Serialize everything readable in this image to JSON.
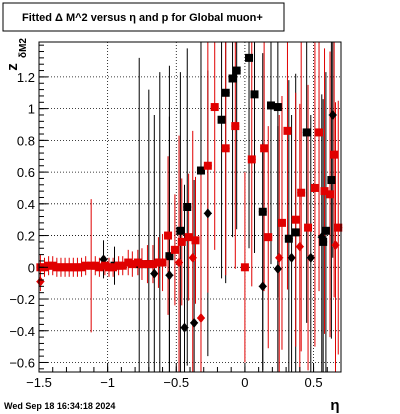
{
  "title": "Fitted Δ M^2 versus η and p for Global muon+",
  "footer": "Wed Sep 18 16:34:18 2024",
  "chart_data": {
    "type": "scatter",
    "xlabel": "η",
    "ylabel": "z",
    "ylabel_subscript": "δM2",
    "xlim": [
      -1.5,
      0.7
    ],
    "ylim": [
      -0.66,
      1.42
    ],
    "xticks": [
      -1.5,
      -1,
      -0.5,
      0,
      0.5
    ],
    "xtick_labels": [
      "−1.5",
      "−1",
      "−0.5",
      "0",
      "0.5"
    ],
    "yticks": [
      -0.6,
      -0.4,
      -0.2,
      0,
      0.2,
      0.4,
      0.6,
      0.8,
      1,
      1.2
    ],
    "ytick_labels": [
      "−0.6",
      "−0.4",
      "−0.2",
      "0",
      "0.2",
      "0.4",
      "0.6",
      "0.8",
      "1",
      "1.2"
    ],
    "grid": true,
    "series": [
      {
        "color": "#000000",
        "marker": "square",
        "points": [
          {
            "x": -0.95,
            "y": 0.01,
            "err": 0.12
          },
          {
            "x": -0.77,
            "y": 0.02,
            "err": 1.3
          },
          {
            "x": -0.7,
            "y": 0.02,
            "err": 1.1
          },
          {
            "x": -0.62,
            "y": 0.03,
            "err": 1.2
          },
          {
            "x": -0.55,
            "y": 0.07,
            "err": 1.2
          },
          {
            "x": -0.47,
            "y": 0.23,
            "err": 1.0
          },
          {
            "x": -0.42,
            "y": 0.38,
            "err": 1.0
          },
          {
            "x": -0.32,
            "y": 0.61,
            "err": 1.0
          },
          {
            "x": -0.17,
            "y": 0.93,
            "err": 1.0
          },
          {
            "x": -0.14,
            "y": 1.1,
            "err": 1.2
          },
          {
            "x": -0.09,
            "y": 1.19,
            "err": 1.0
          },
          {
            "x": -0.06,
            "y": 1.24,
            "err": 1.0
          },
          {
            "x": 0.03,
            "y": 1.32,
            "err": 1.2
          },
          {
            "x": 0.07,
            "y": 1.09,
            "err": 1.0
          },
          {
            "x": 0.19,
            "y": 1.02,
            "err": 1.0
          },
          {
            "x": 0.24,
            "y": 1.01,
            "err": 1.2
          },
          {
            "x": 0.13,
            "y": 0.35,
            "err": 1.0
          },
          {
            "x": 0.32,
            "y": 0.18,
            "err": 1.0
          },
          {
            "x": 0.37,
            "y": 0.22,
            "err": 1.0
          },
          {
            "x": 0.45,
            "y": 0.85,
            "err": 1.2
          },
          {
            "x": 0.57,
            "y": 0.16,
            "err": 0.9
          },
          {
            "x": 0.59,
            "y": 0.23,
            "err": 1.0
          },
          {
            "x": 0.63,
            "y": 0.55,
            "err": 1.0
          }
        ]
      },
      {
        "color": "#000000",
        "marker": "diamond",
        "points": [
          {
            "x": -1.03,
            "y": 0.05,
            "err": 0.12
          },
          {
            "x": -0.66,
            "y": -0.04,
            "err": 1.0
          },
          {
            "x": -0.55,
            "y": -0.05,
            "err": 1.0
          },
          {
            "x": -0.44,
            "y": -0.38,
            "err": 0.9
          },
          {
            "x": -0.37,
            "y": -0.35,
            "err": 0.9
          },
          {
            "x": -0.27,
            "y": 0.34,
            "err": 0.9
          },
          {
            "x": 0.13,
            "y": -0.12,
            "err": 0.9
          },
          {
            "x": 0.24,
            "y": -0.01,
            "err": 0.9
          },
          {
            "x": 0.34,
            "y": 0.06,
            "err": 0.9
          },
          {
            "x": 0.48,
            "y": 0.06,
            "err": 0.9
          },
          {
            "x": 0.56,
            "y": 0.19,
            "err": 0.9
          },
          {
            "x": 0.64,
            "y": 0.96,
            "err": 0.9
          }
        ]
      },
      {
        "color": "#e00000",
        "marker": "square",
        "points": [
          {
            "x": -1.49,
            "y": 0.0,
            "err": 0.08
          },
          {
            "x": -1.46,
            "y": 0.0,
            "err": 0.06
          },
          {
            "x": -1.43,
            "y": 0.01,
            "err": 0.06
          },
          {
            "x": -1.4,
            "y": 0.01,
            "err": 0.06
          },
          {
            "x": -1.37,
            "y": 0.0,
            "err": 0.06
          },
          {
            "x": -1.34,
            "y": 0.0,
            "err": 0.06
          },
          {
            "x": -1.31,
            "y": 0.0,
            "err": 0.06
          },
          {
            "x": -1.28,
            "y": 0.0,
            "err": 0.06
          },
          {
            "x": -1.25,
            "y": 0.0,
            "err": 0.06
          },
          {
            "x": -1.22,
            "y": 0.0,
            "err": 0.06
          },
          {
            "x": -1.19,
            "y": 0.0,
            "err": 0.06
          },
          {
            "x": -1.16,
            "y": 0.01,
            "err": 0.06
          },
          {
            "x": -1.12,
            "y": 0.01,
            "err": 0.42
          },
          {
            "x": -1.09,
            "y": 0.01,
            "err": 0.06
          },
          {
            "x": -1.06,
            "y": 0.0,
            "err": 0.06
          },
          {
            "x": -1.02,
            "y": 0.01,
            "err": 0.06
          },
          {
            "x": -0.99,
            "y": 0.0,
            "err": 0.06
          },
          {
            "x": -0.96,
            "y": 0.0,
            "err": 0.06
          },
          {
            "x": -0.92,
            "y": 0.01,
            "err": 0.06
          },
          {
            "x": -0.89,
            "y": 0.01,
            "err": 0.06
          },
          {
            "x": -0.85,
            "y": 0.03,
            "err": 0.08
          },
          {
            "x": -0.82,
            "y": 0.02,
            "err": 0.08
          },
          {
            "x": -0.78,
            "y": 0.03,
            "err": 0.08
          },
          {
            "x": -0.75,
            "y": 0.02,
            "err": 0.1
          },
          {
            "x": -0.71,
            "y": 0.02,
            "err": 0.12
          },
          {
            "x": -0.67,
            "y": 0.02,
            "err": 0.12
          },
          {
            "x": -0.63,
            "y": 0.03,
            "err": 0.16
          },
          {
            "x": -0.6,
            "y": 0.03,
            "err": 0.18
          },
          {
            "x": -0.56,
            "y": 0.2,
            "err": 0.5
          },
          {
            "x": -0.51,
            "y": 0.11,
            "err": 0.35
          },
          {
            "x": -0.46,
            "y": 0.16,
            "err": 0.4
          },
          {
            "x": -0.41,
            "y": 0.19,
            "err": 0.4
          },
          {
            "x": -0.36,
            "y": 0.17,
            "err": 0.4
          },
          {
            "x": -0.27,
            "y": 0.64,
            "err": 0.8
          },
          {
            "x": -0.22,
            "y": 1.01,
            "err": 0.9
          },
          {
            "x": -0.14,
            "y": 0.75,
            "err": 0.8
          },
          {
            "x": -0.07,
            "y": 0.89,
            "err": 0.9
          },
          {
            "x": 0.0,
            "y": 0.0,
            "err": 0.6
          },
          {
            "x": 0.05,
            "y": 0.68,
            "err": 0.8
          },
          {
            "x": 0.14,
            "y": 0.75,
            "err": 0.9
          },
          {
            "x": 0.17,
            "y": 0.19,
            "err": 0.7
          },
          {
            "x": 0.27,
            "y": 0.28,
            "err": 0.8
          },
          {
            "x": 0.31,
            "y": 0.86,
            "err": 1.0
          },
          {
            "x": 0.37,
            "y": 0.3,
            "err": 0.8
          },
          {
            "x": 0.41,
            "y": 0.47,
            "err": 1.0
          },
          {
            "x": 0.46,
            "y": 0.25,
            "err": 0.9
          },
          {
            "x": 0.51,
            "y": 0.5,
            "err": 1.0
          },
          {
            "x": 0.54,
            "y": 0.85,
            "err": 1.0
          },
          {
            "x": 0.58,
            "y": 0.48,
            "err": 0.9
          },
          {
            "x": 0.62,
            "y": 0.46,
            "err": 0.9
          },
          {
            "x": 0.65,
            "y": 0.71,
            "err": 0.9
          },
          {
            "x": 0.68,
            "y": 0.25,
            "err": 0.8
          }
        ]
      },
      {
        "color": "#e00000",
        "marker": "diamond",
        "points": [
          {
            "x": -1.49,
            "y": -0.09,
            "err": 0.06
          },
          {
            "x": -0.48,
            "y": 0.03,
            "err": 0.8
          },
          {
            "x": -0.38,
            "y": 0.06,
            "err": 0.8
          },
          {
            "x": -0.32,
            "y": -0.32,
            "err": 0.9
          },
          {
            "x": 0.25,
            "y": 0.06,
            "err": 0.9
          },
          {
            "x": 0.4,
            "y": 0.13,
            "err": 0.9
          },
          {
            "x": 0.66,
            "y": 0.14,
            "err": 0.9
          }
        ]
      }
    ]
  }
}
